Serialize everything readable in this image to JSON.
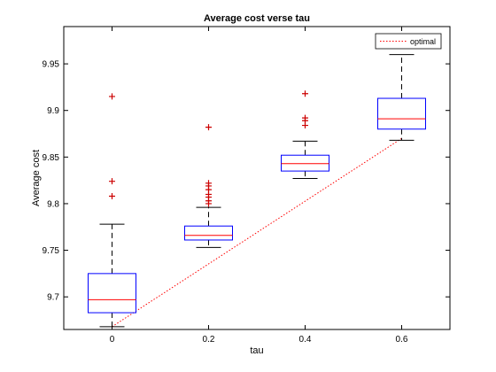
{
  "chart_data": {
    "type": "box",
    "title": "Average cost verse tau",
    "xlabel": "tau",
    "ylabel": "Average cost",
    "xlim": [
      -0.1,
      0.7
    ],
    "ylim": [
      9.665,
      9.99
    ],
    "xticks": [
      {
        "value": 0,
        "label": "0"
      },
      {
        "value": 0.2,
        "label": "0.2"
      },
      {
        "value": 0.4,
        "label": "0.4"
      },
      {
        "value": 0.6,
        "label": "0.6"
      }
    ],
    "yticks": [
      {
        "value": 9.7,
        "label": "9.7"
      },
      {
        "value": 9.75,
        "label": "9.75"
      },
      {
        "value": 9.8,
        "label": "9.8"
      },
      {
        "value": 9.85,
        "label": "9.85"
      },
      {
        "value": 9.9,
        "label": "9.9"
      },
      {
        "value": 9.95,
        "label": "9.95"
      }
    ],
    "grid": false,
    "legend": {
      "position": "top-right",
      "entries": [
        {
          "label": "optimal",
          "color": "#ff0000",
          "style": "dotted"
        }
      ]
    },
    "boxes": [
      {
        "x": 0,
        "whisker_low": 9.668,
        "q1": 9.683,
        "median": 9.697,
        "q3": 9.725,
        "whisker_high": 9.778,
        "outliers": [
          9.808,
          9.824,
          9.915
        ]
      },
      {
        "x": 0.2,
        "whisker_low": 9.753,
        "q1": 9.761,
        "median": 9.766,
        "q3": 9.776,
        "whisker_high": 9.796,
        "outliers": [
          9.8,
          9.803,
          9.807,
          9.81,
          9.815,
          9.819,
          9.822,
          9.882
        ]
      },
      {
        "x": 0.4,
        "whisker_low": 9.827,
        "q1": 9.835,
        "median": 9.843,
        "q3": 9.852,
        "whisker_high": 9.867,
        "outliers": [
          9.884,
          9.889,
          9.892,
          9.918
        ]
      },
      {
        "x": 0.6,
        "whisker_low": 9.868,
        "q1": 9.88,
        "median": 9.891,
        "q3": 9.913,
        "whisker_high": 9.96,
        "outliers": []
      }
    ],
    "optimal_line": {
      "name": "optimal",
      "x": [
        0,
        0.6
      ],
      "y": [
        9.668,
        9.87
      ]
    },
    "colors": {
      "box": "#0000ff",
      "median": "#ff0000",
      "whisker": "#000000",
      "outlier": "#cc0000",
      "optimal": "#ff0000"
    }
  }
}
